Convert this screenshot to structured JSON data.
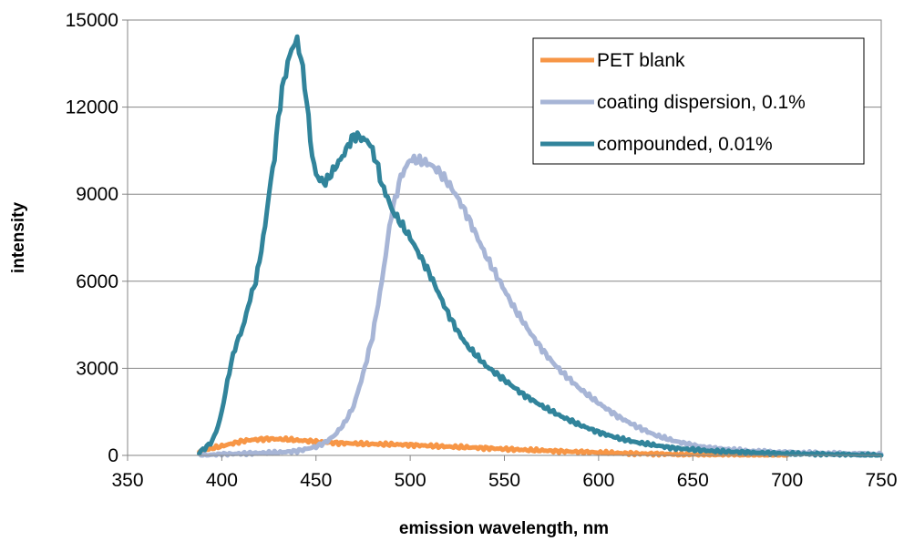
{
  "chart_data": {
    "type": "line",
    "xlabel": "emission wavelength, nm",
    "ylabel": "intensity",
    "xlim": [
      350,
      750
    ],
    "ylim": [
      0,
      15000
    ],
    "xticks": [
      "350",
      "400",
      "450",
      "500",
      "550",
      "600",
      "650",
      "700",
      "750"
    ],
    "yticks": [
      "0",
      "3000",
      "6000",
      "9000",
      "12000",
      "15000"
    ],
    "grid": "horizontal",
    "legend_position": "top-right",
    "series": [
      {
        "name": "PET blank",
        "color": "#F79646",
        "x": [
          388,
          395,
          400,
          405,
          410,
          415,
          420,
          425,
          430,
          435,
          440,
          445,
          450,
          460,
          470,
          480,
          490,
          500,
          510,
          520,
          530,
          540,
          550,
          560,
          570,
          580,
          590,
          600,
          610,
          620,
          630,
          640,
          650,
          660,
          670,
          680,
          690,
          700
        ],
        "y": [
          150,
          250,
          320,
          400,
          480,
          530,
          550,
          570,
          560,
          550,
          520,
          500,
          470,
          430,
          410,
          390,
          380,
          360,
          330,
          300,
          280,
          250,
          220,
          190,
          170,
          140,
          120,
          100,
          80,
          60,
          50,
          40,
          30,
          20,
          15,
          10,
          5,
          0
        ]
      },
      {
        "name": "coating dispersion, 0.1%",
        "color": "#A7B5D6",
        "x": [
          388,
          395,
          400,
          410,
          420,
          430,
          440,
          450,
          455,
          460,
          465,
          470,
          475,
          480,
          485,
          490,
          495,
          500,
          505,
          510,
          515,
          520,
          525,
          530,
          535,
          540,
          545,
          550,
          555,
          560,
          565,
          570,
          575,
          580,
          585,
          590,
          595,
          600,
          610,
          620,
          630,
          640,
          650,
          660,
          680,
          700,
          720,
          750
        ],
        "y": [
          0,
          20,
          40,
          60,
          80,
          100,
          150,
          300,
          450,
          700,
          1100,
          1700,
          2800,
          4100,
          6000,
          8300,
          9600,
          10200,
          10150,
          10050,
          9800,
          9400,
          8900,
          8300,
          7600,
          6900,
          6300,
          5700,
          5100,
          4600,
          4100,
          3650,
          3250,
          2900,
          2600,
          2300,
          2050,
          1800,
          1350,
          1000,
          700,
          500,
          350,
          250,
          150,
          100,
          70,
          40
        ]
      },
      {
        "name": "compounded, 0.01%",
        "color": "#31849B",
        "x": [
          388,
          392,
          395,
          398,
          400,
          402,
          405,
          408,
          410,
          412,
          415,
          418,
          420,
          423,
          425,
          428,
          430,
          432,
          435,
          437,
          440,
          442,
          444,
          446,
          448,
          450,
          452,
          455,
          457,
          460,
          462,
          465,
          468,
          470,
          472,
          475,
          478,
          480,
          483,
          485,
          488,
          490,
          495,
          500,
          505,
          510,
          515,
          520,
          525,
          530,
          540,
          550,
          560,
          570,
          580,
          590,
          600,
          610,
          620,
          630,
          640,
          650,
          660,
          680,
          700,
          720,
          750
        ],
        "y": [
          100,
          300,
          500,
          1000,
          1500,
          2200,
          3200,
          3900,
          4200,
          4600,
          5400,
          6000,
          6700,
          7900,
          9000,
          10300,
          11600,
          12600,
          13500,
          14000,
          14300,
          13700,
          12800,
          11600,
          10300,
          9700,
          9500,
          9400,
          9600,
          9900,
          10100,
          10400,
          10800,
          11000,
          11000,
          10900,
          10800,
          10500,
          9900,
          9300,
          8900,
          8500,
          8000,
          7500,
          6900,
          6300,
          5600,
          4900,
          4300,
          3800,
          3100,
          2600,
          2100,
          1700,
          1350,
          1050,
          800,
          600,
          450,
          350,
          250,
          200,
          150,
          100,
          60,
          40,
          0
        ]
      }
    ]
  }
}
